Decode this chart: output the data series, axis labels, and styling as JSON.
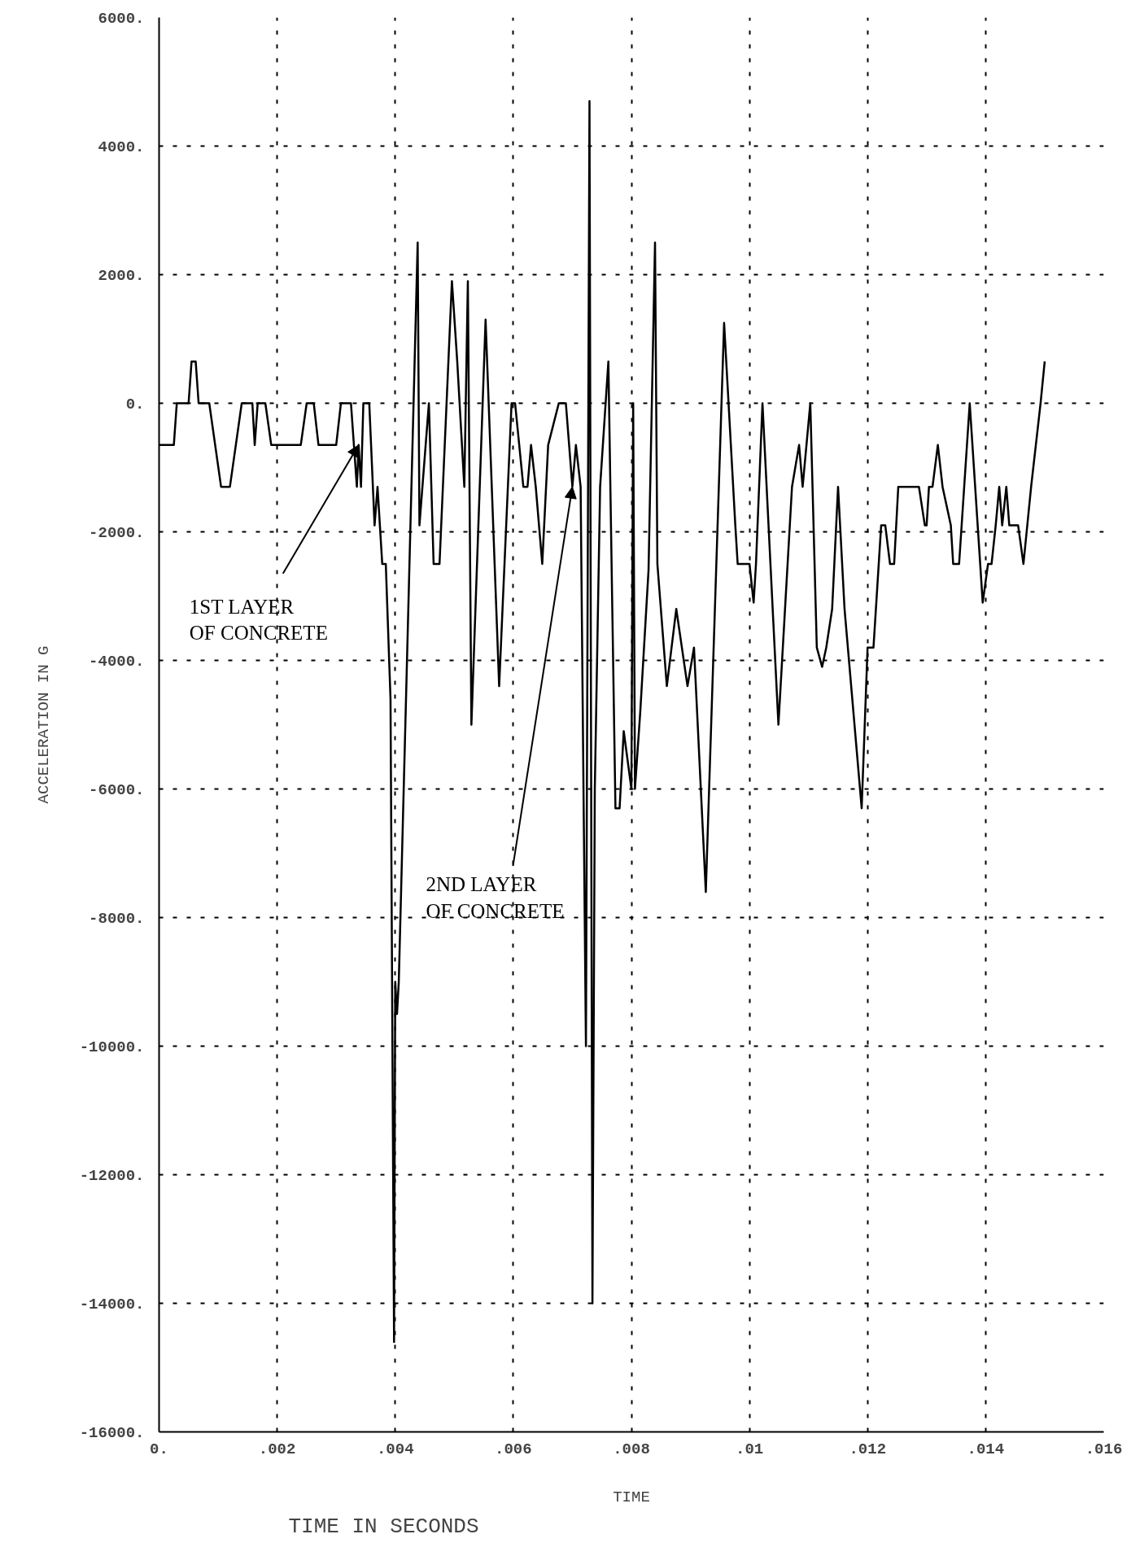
{
  "chart_data": {
    "type": "line",
    "xlabel": "TIME",
    "ylabel": "ACCELERATION IN G",
    "x": [
      0,
      0.00025,
      0.0003,
      0.0005,
      0.00055,
      0.00062,
      0.00067,
      0.00085,
      0.00095,
      0.00105,
      0.0012,
      0.0013,
      0.0014,
      0.00158,
      0.00162,
      0.00167,
      0.0018,
      0.0019,
      0.0024,
      0.0025,
      0.00262,
      0.0027,
      0.003,
      0.00308,
      0.00325,
      0.0033,
      0.00335,
      0.00338,
      0.00342,
      0.00346,
      0.00356,
      0.00365,
      0.0037,
      0.00378,
      0.00384,
      0.00392,
      0.00398,
      0.004,
      0.00403,
      0.00406,
      0.00438,
      0.00441,
      0.00457,
      0.00465,
      0.00475,
      0.00496,
      0.00505,
      0.00517,
      0.00523,
      0.00529,
      0.00553,
      0.00576,
      0.00597,
      0.00603,
      0.00617,
      0.00624,
      0.0063,
      0.00638,
      0.00649,
      0.00659,
      0.00677,
      0.00689,
      0.007,
      0.00706,
      0.00714,
      0.00723,
      0.00729,
      0.00734,
      0.00738,
      0.00747,
      0.00761,
      0.00773,
      0.0078,
      0.00787,
      0.008,
      0.00803,
      0.00806,
      0.00815,
      0.00829,
      0.0084,
      0.00844,
      0.0086,
      0.00876,
      0.00895,
      0.00906,
      0.00926,
      0.00957,
      0.00976,
      0.0098,
      0.01,
      0.01007,
      0.01011,
      0.01022,
      0.01049,
      0.01072,
      0.01084,
      0.0109,
      0.01103,
      0.01114,
      0.01123,
      0.0113,
      0.0114,
      0.0115,
      0.01161,
      0.0119,
      0.012,
      0.0121,
      0.01223,
      0.0123,
      0.01238,
      0.01245,
      0.01252,
      0.01287,
      0.01297,
      0.013,
      0.01304,
      0.0131,
      0.01319,
      0.01327,
      0.01341,
      0.01345,
      0.01355,
      0.01373,
      0.01395,
      0.01404,
      0.0141,
      0.01417,
      0.01423,
      0.01428,
      0.01435,
      0.0144,
      0.01455,
      0.01464,
      0.01477,
      0.01485,
      0.01493,
      0.015
    ],
    "series": [
      {
        "color": "#000000",
        "values": [
          -650,
          -650,
          0,
          0,
          650,
          650,
          0,
          0,
          -650,
          -1300,
          -1300,
          -650,
          0,
          0,
          -650,
          0,
          0,
          -650,
          -650,
          0,
          0,
          -650,
          -650,
          0,
          0,
          -650,
          -1300,
          -650,
          -1300,
          0,
          0,
          -1900,
          -1300,
          -2500,
          -2500,
          -4600,
          -14600,
          -9000,
          -9500,
          -9000,
          2500,
          -1900,
          0,
          -2500,
          -2500,
          1900,
          650,
          -1300,
          1900,
          -5000,
          1300,
          -4400,
          0,
          0,
          -1300,
          -1300,
          -650,
          -1300,
          -2500,
          -650,
          0,
          0,
          -1300,
          -650,
          -1300,
          -10000,
          4700,
          -14000,
          -6000,
          -1300,
          650,
          -6300,
          -6300,
          -5100,
          -6000,
          0,
          -6000,
          -4800,
          -2600,
          2500,
          -2500,
          -4400,
          -3200,
          -4400,
          -3800,
          -7600,
          1250,
          -1900,
          -2500,
          -2500,
          -3100,
          -2500,
          0,
          -5000,
          -1300,
          -650,
          -1300,
          0,
          -3800,
          -4100,
          -3800,
          -3200,
          -1300,
          -3200,
          -6300,
          -3800,
          -3800,
          -1900,
          -1900,
          -2500,
          -2500,
          -1300,
          -1300,
          -1900,
          -1900,
          -1300,
          -1300,
          -650,
          -1300,
          -1900,
          -2500,
          -2500,
          0,
          -3100,
          -2500,
          -2500,
          -1900,
          -1300,
          -1900,
          -1300,
          -1900,
          -1900,
          -2500,
          -1300,
          -650,
          0,
          650
        ]
      }
    ],
    "xlim": [
      0,
      0.016
    ],
    "xticks": [
      {
        "value": 0,
        "label": "0."
      },
      {
        "value": 0.002,
        "label": ".002"
      },
      {
        "value": 0.004,
        "label": ".004"
      },
      {
        "value": 0.006,
        "label": ".006"
      },
      {
        "value": 0.008,
        "label": ".008"
      },
      {
        "value": 0.01,
        "label": ".01"
      },
      {
        "value": 0.012,
        "label": ".012"
      },
      {
        "value": 0.014,
        "label": ".014"
      },
      {
        "value": 0.016,
        "label": ".016"
      }
    ],
    "ylim": [
      -16000,
      6000
    ],
    "yticks": [
      {
        "value": -16000,
        "label": "-16000."
      },
      {
        "value": -14000,
        "label": "-14000."
      },
      {
        "value": -12000,
        "label": "-12000."
      },
      {
        "value": -10000,
        "label": "-10000."
      },
      {
        "value": -8000,
        "label": "-8000."
      },
      {
        "value": -6000,
        "label": "-6000."
      },
      {
        "value": -4000,
        "label": "-4000."
      },
      {
        "value": -2000,
        "label": "-2000."
      },
      {
        "value": 0,
        "label": "0."
      },
      {
        "value": 2000,
        "label": "2000."
      },
      {
        "value": 4000,
        "label": "4000."
      },
      {
        "value": 6000,
        "label": "6000."
      }
    ],
    "grid": true,
    "marker": "none",
    "line_style": "solid",
    "annotations": [
      {
        "text": "1ST LAYER\nOF CONCRETE",
        "x": 0.00338,
        "y": -650
      },
      {
        "text": "2ND LAYER\nOF CONCRETE",
        "x": 0.007,
        "y": -1300
      },
      "TIME IN SECONDS"
    ]
  }
}
